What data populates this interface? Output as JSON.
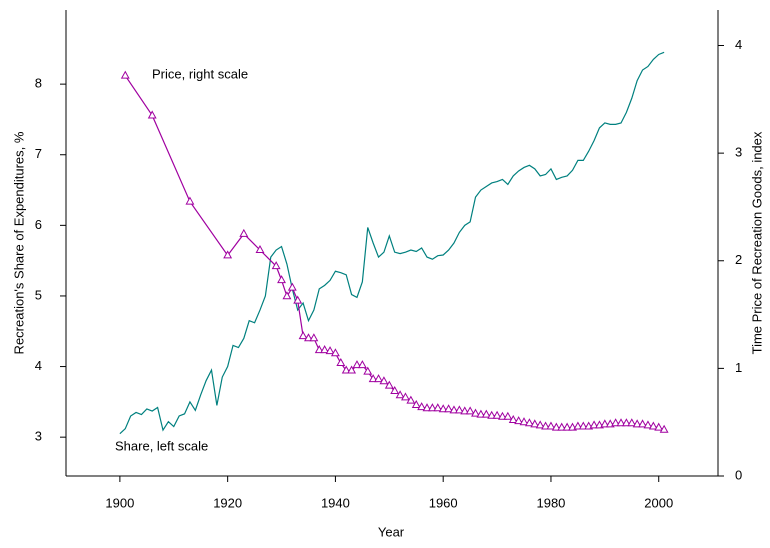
{
  "chart_data": {
    "type": "line",
    "x_label": "Year",
    "y_label": "Recreation's Share of Expenditures, %",
    "y2_label": "Time Price of Recreation Goods, index",
    "annotations": [
      "Price, right scale",
      "Share, left scale"
    ],
    "xlim": [
      1890,
      2011
    ],
    "xticks": [
      1900,
      1920,
      1940,
      1960,
      1980,
      2000
    ],
    "ylim": [
      2.45,
      9.05
    ],
    "yticks": [
      3,
      4,
      5,
      6,
      7,
      8
    ],
    "y2lim": [
      0,
      4.33
    ],
    "y2ticks": [
      0,
      1,
      2,
      3,
      4
    ],
    "series": [
      {
        "color": "#00807f",
        "axis": "y",
        "x": [
          1900,
          1901,
          1902,
          1903,
          1904,
          1905,
          1906,
          1907,
          1908,
          1909,
          1910,
          1911,
          1912,
          1913,
          1914,
          1915,
          1916,
          1917,
          1918,
          1919,
          1920,
          1921,
          1922,
          1923,
          1924,
          1925,
          1926,
          1927,
          1928,
          1929,
          1930,
          1931,
          1932,
          1933,
          1934,
          1935,
          1936,
          1937,
          1938,
          1939,
          1940,
          1941,
          1942,
          1943,
          1944,
          1945,
          1946,
          1947,
          1948,
          1949,
          1950,
          1951,
          1952,
          1953,
          1954,
          1955,
          1956,
          1957,
          1958,
          1959,
          1960,
          1961,
          1962,
          1963,
          1964,
          1965,
          1966,
          1967,
          1968,
          1969,
          1970,
          1971,
          1972,
          1973,
          1974,
          1975,
          1976,
          1977,
          1978,
          1979,
          1980,
          1981,
          1982,
          1983,
          1984,
          1985,
          1986,
          1987,
          1988,
          1989,
          1990,
          1991,
          1992,
          1993,
          1994,
          1995,
          1996,
          1997,
          1998,
          1999,
          2000,
          2001
        ],
        "values": [
          3.05,
          3.12,
          3.3,
          3.35,
          3.32,
          3.4,
          3.37,
          3.42,
          3.1,
          3.22,
          3.15,
          3.3,
          3.33,
          3.5,
          3.38,
          3.6,
          3.8,
          3.95,
          3.45,
          3.85,
          4.0,
          4.3,
          4.27,
          4.4,
          4.65,
          4.62,
          4.8,
          5.0,
          5.55,
          5.65,
          5.7,
          5.45,
          5.1,
          4.8,
          4.9,
          4.65,
          4.8,
          5.1,
          5.15,
          5.22,
          5.35,
          5.33,
          5.3,
          5.02,
          4.98,
          5.2,
          5.97,
          5.75,
          5.55,
          5.62,
          5.85,
          5.62,
          5.6,
          5.62,
          5.65,
          5.63,
          5.68,
          5.55,
          5.52,
          5.57,
          5.58,
          5.65,
          5.75,
          5.9,
          6.0,
          6.05,
          6.4,
          6.5,
          6.55,
          6.6,
          6.62,
          6.65,
          6.58,
          6.7,
          6.77,
          6.82,
          6.85,
          6.8,
          6.7,
          6.72,
          6.8,
          6.65,
          6.68,
          6.7,
          6.78,
          6.92,
          6.92,
          7.05,
          7.2,
          7.38,
          7.45,
          7.43,
          7.43,
          7.45,
          7.6,
          7.8,
          8.05,
          8.2,
          8.25,
          8.35,
          8.42,
          8.45
        ]
      },
      {
        "color": "#a000a0",
        "axis": "y2",
        "marker": "triangle",
        "x": [
          1901,
          1906,
          1913,
          1920,
          1923,
          1926,
          1929,
          1930,
          1931,
          1932,
          1933,
          1934,
          1935,
          1936,
          1937,
          1938,
          1939,
          1940,
          1941,
          1942,
          1943,
          1944,
          1945,
          1946,
          1947,
          1948,
          1949,
          1950,
          1951,
          1952,
          1953,
          1954,
          1955,
          1956,
          1957,
          1958,
          1959,
          1960,
          1961,
          1962,
          1963,
          1964,
          1965,
          1966,
          1967,
          1968,
          1969,
          1970,
          1971,
          1972,
          1973,
          1974,
          1975,
          1976,
          1977,
          1978,
          1979,
          1980,
          1981,
          1982,
          1983,
          1984,
          1985,
          1986,
          1987,
          1988,
          1989,
          1990,
          1991,
          1992,
          1993,
          1994,
          1995,
          1996,
          1997,
          1998,
          1999,
          2000,
          2001
        ],
        "values": [
          3.72,
          3.35,
          2.55,
          2.05,
          2.25,
          2.1,
          1.95,
          1.82,
          1.67,
          1.75,
          1.63,
          1.3,
          1.28,
          1.28,
          1.17,
          1.17,
          1.16,
          1.14,
          1.05,
          0.98,
          0.98,
          1.03,
          1.03,
          0.97,
          0.9,
          0.9,
          0.88,
          0.84,
          0.79,
          0.75,
          0.73,
          0.7,
          0.66,
          0.64,
          0.63,
          0.63,
          0.63,
          0.62,
          0.62,
          0.61,
          0.61,
          0.6,
          0.6,
          0.58,
          0.57,
          0.57,
          0.56,
          0.56,
          0.55,
          0.55,
          0.52,
          0.51,
          0.5,
          0.49,
          0.48,
          0.47,
          0.46,
          0.46,
          0.45,
          0.45,
          0.45,
          0.45,
          0.46,
          0.46,
          0.46,
          0.47,
          0.47,
          0.48,
          0.48,
          0.49,
          0.49,
          0.49,
          0.49,
          0.48,
          0.48,
          0.47,
          0.46,
          0.45,
          0.43
        ]
      }
    ]
  }
}
